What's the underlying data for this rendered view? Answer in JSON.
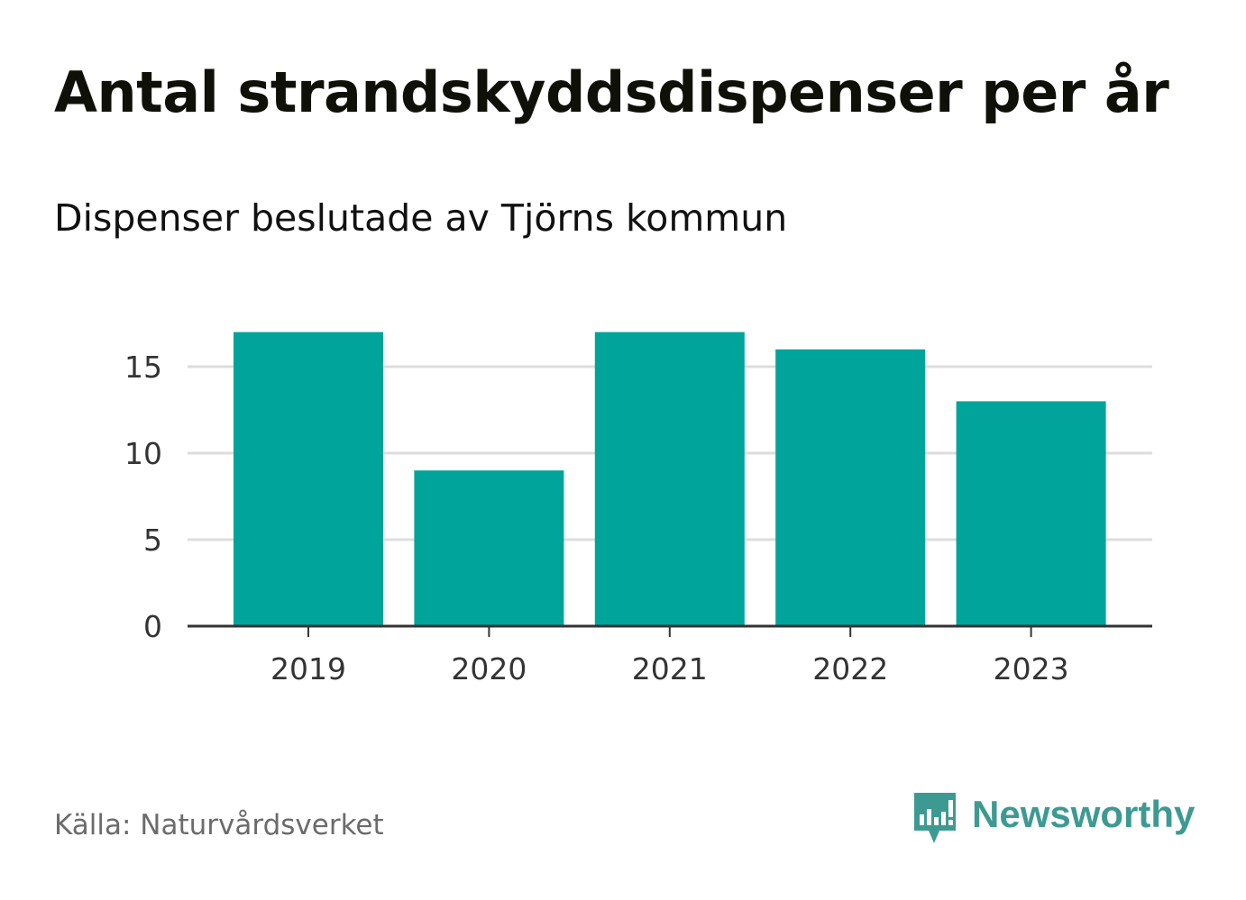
{
  "title": "Antal strandskyddsdispenser per år",
  "subtitle": "Dispenser beslutade av Tjörns kommun",
  "source": "Källa: Naturvårdsverket",
  "brand": {
    "name": "Newsworthy",
    "logo_icon": "newsworthy-bar-chart-bubble-icon"
  },
  "colors": {
    "bar": "#00a49a",
    "grid": "#dddddd",
    "axis": "#333333",
    "brand": "#3d9a92"
  },
  "chart_data": {
    "type": "bar",
    "title": "Antal strandskyddsdispenser per år",
    "subtitle": "Dispenser beslutade av Tjörns kommun",
    "categories": [
      "2019",
      "2020",
      "2021",
      "2022",
      "2023"
    ],
    "values": [
      17,
      9,
      17,
      16,
      13
    ],
    "xlabel": "",
    "ylabel": "",
    "ylim": [
      0,
      17.5
    ],
    "yticks": [
      0,
      5,
      10,
      15
    ],
    "grid": "horizontal",
    "legend": "none"
  }
}
